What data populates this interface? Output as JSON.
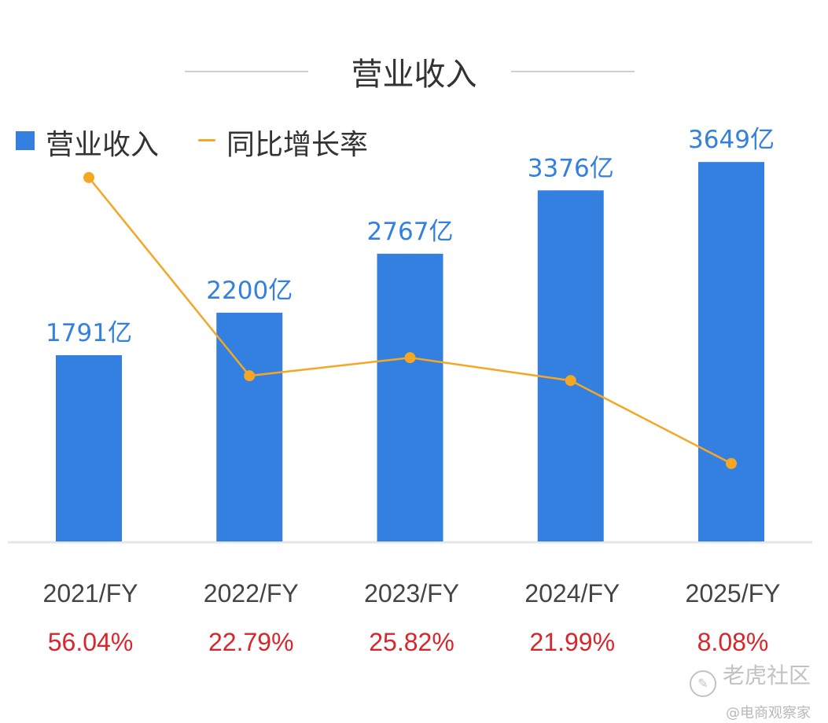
{
  "title": "营业收入",
  "legend": [
    {
      "label": "营业收入",
      "color": "#3480E0",
      "kind": "bar"
    },
    {
      "label": "同比增长率",
      "color": "#F5A623",
      "kind": "line"
    }
  ],
  "chart_data": {
    "type": "bar",
    "categories": [
      "2021/FY",
      "2022/FY",
      "2023/FY",
      "2024/FY",
      "2025/FY"
    ],
    "series": [
      {
        "name": "营业收入",
        "type": "bar",
        "unit": "亿",
        "values": [
          1791,
          2200,
          2767,
          3376,
          3649
        ],
        "labels": [
          "1791亿",
          "2200亿",
          "2767亿",
          "3376亿",
          "3649亿"
        ],
        "color": "#3480E0"
      },
      {
        "name": "同比增长率",
        "type": "line",
        "unit": "%",
        "values": [
          56.04,
          22.79,
          25.82,
          21.99,
          8.08
        ],
        "labels": [
          "56.04%",
          "22.79%",
          "25.82%",
          "21.99%",
          "8.08%"
        ],
        "color": "#F5A623"
      }
    ],
    "bar_ylim": [
      0,
      4300
    ],
    "line_ylim": [
      -5,
      70
    ],
    "grid": false,
    "legend_position": "top-left",
    "label_colors": {
      "bar_value": "#3480E0",
      "category": "#444444",
      "growth": "#D9262C"
    }
  },
  "watermark": {
    "main": "老虎社区",
    "sub": "@电商观察家"
  }
}
